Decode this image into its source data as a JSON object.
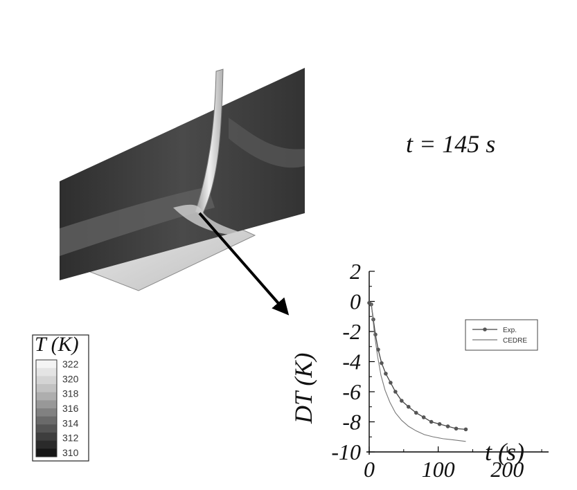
{
  "time_label": "t = 145 s",
  "colorbar": {
    "title": "T (K)",
    "ticks": [
      "322",
      "320",
      "318",
      "316",
      "314",
      "312",
      "310"
    ],
    "shades": [
      "#f4f4f4",
      "#e4e4e4",
      "#d4d4d4",
      "#c2c2c2",
      "#aeaeae",
      "#989898",
      "#818181",
      "#6a6a6a",
      "#545454",
      "#3e3e3e",
      "#2a2a2a",
      "#161616"
    ]
  },
  "chart_data": {
    "type": "line",
    "xlabel": "t (s)",
    "ylabel": "DT (K)",
    "xlim": [
      0,
      260
    ],
    "ylim": [
      -10,
      2
    ],
    "x_ticks": [
      "0",
      "100",
      "200"
    ],
    "y_ticks": [
      "2",
      "0",
      "-2",
      "-4",
      "-6",
      "-8",
      "-10"
    ],
    "legend_placement": "top-right",
    "series": [
      {
        "name": "Exp.",
        "marker": "circle",
        "x": [
          0,
          3,
          6,
          9,
          13,
          18,
          24,
          31,
          38,
          47,
          57,
          68,
          79,
          90,
          102,
          114,
          126,
          140
        ],
        "y": [
          -0.1,
          -0.2,
          -1.2,
          -2.2,
          -3.2,
          -4.1,
          -4.8,
          -5.4,
          -6.0,
          -6.6,
          -7.0,
          -7.4,
          -7.7,
          -8.0,
          -8.15,
          -8.3,
          -8.45,
          -8.5
        ]
      },
      {
        "name": "CEDRE",
        "marker": "none",
        "x": [
          3,
          5,
          8,
          12,
          17,
          23,
          30,
          38,
          47,
          57,
          68,
          80,
          93,
          107,
          122,
          140
        ],
        "y": [
          -0.1,
          -1.0,
          -2.3,
          -3.6,
          -4.9,
          -5.9,
          -6.7,
          -7.4,
          -7.9,
          -8.3,
          -8.6,
          -8.85,
          -9.0,
          -9.12,
          -9.2,
          -9.3
        ]
      }
    ]
  }
}
